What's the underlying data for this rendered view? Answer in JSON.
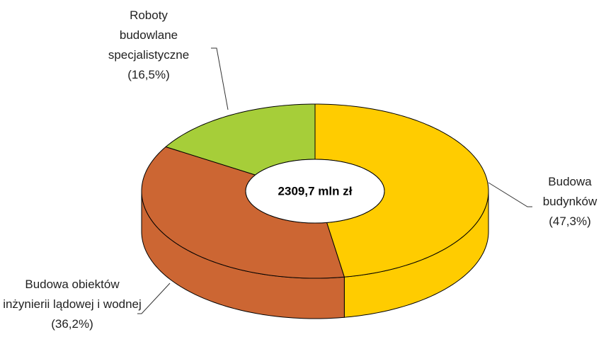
{
  "chart_data": {
    "type": "donut3d",
    "center_label": "2309,7 mln zł",
    "categories": [
      "Budowa budynków",
      "Budowa obiektów inżynierii lądowej i wodnej",
      "Roboty budowlane specjalistyczne"
    ],
    "values": [
      47.3,
      36.2,
      16.5
    ],
    "value_labels": [
      "(47,3%)",
      "(36,2%)",
      "(16,5%)"
    ],
    "colors": [
      "#ffcc00",
      "#cc6633",
      "#a6ce39"
    ]
  }
}
